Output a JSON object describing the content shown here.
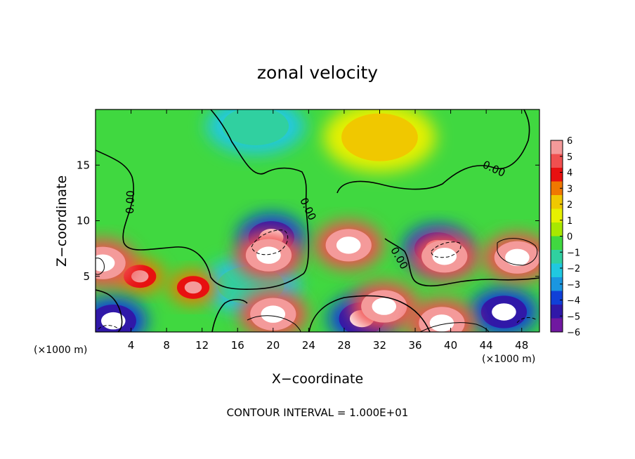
{
  "chart_data": {
    "type": "heatmap",
    "title": "zonal velocity",
    "xlabel": "X−coordinate",
    "ylabel": "Z−coordinate",
    "x_multiplier": "(×1000 m)",
    "z_multiplier": "(×1000 m)",
    "xlim": [
      0,
      50
    ],
    "ylim": [
      0,
      20
    ],
    "x_ticks": [
      4,
      8,
      12,
      16,
      20,
      24,
      28,
      32,
      36,
      40,
      44,
      48
    ],
    "y_ticks": [
      5,
      10,
      15
    ],
    "colorbar": {
      "levels": [
        6,
        5,
        4,
        3,
        2,
        1,
        0,
        -1,
        -2,
        -3,
        -4,
        -5,
        -6
      ],
      "labels": [
        "6",
        "5",
        "4",
        "3",
        "2",
        "1",
        "0",
        "−1",
        "−2",
        "−3",
        "−4",
        "−5",
        "−6"
      ],
      "colors": [
        "#f49a9a",
        "#f05050",
        "#e81010",
        "#f07800",
        "#f0c800",
        "#e6f000",
        "#a8e800",
        "#40d840",
        "#30d0a0",
        "#20c8e0",
        "#1a96e0",
        "#1040d8",
        "#3018a8",
        "#7018a0"
      ],
      "out_of_range": "#ffffff"
    },
    "contour_labels": [
      "0.00",
      "0.00",
      "0.00",
      "0.00",
      "0.00"
    ],
    "contour_interval_text": "CONTOUR INTERVAL = 1.000E+01",
    "features": [
      {
        "kind": "positive_max",
        "x": 19.5,
        "z": 6.9
      },
      {
        "kind": "positive_max",
        "x": 28.5,
        "z": 7.8
      },
      {
        "kind": "positive_max",
        "x": 39.3,
        "z": 6.8
      },
      {
        "kind": "positive_max",
        "x": 47.5,
        "z": 6.7
      },
      {
        "kind": "positive_max",
        "x": 0.8,
        "z": 6.2
      },
      {
        "kind": "positive_max",
        "x": 20.0,
        "z": 1.6
      },
      {
        "kind": "positive_max",
        "x": 32.5,
        "z": 2.3
      },
      {
        "kind": "positive_max",
        "x": 39.0,
        "z": 0.8
      },
      {
        "kind": "negative_max",
        "x": 19.8,
        "z": 8.5
      },
      {
        "kind": "negative_max",
        "x": 38.5,
        "z": 7.5
      },
      {
        "kind": "negative_max",
        "x": 2.0,
        "z": 1.0
      },
      {
        "kind": "negative_max",
        "x": 46.0,
        "z": 1.8
      },
      {
        "kind": "negative_max",
        "x": 30.0,
        "z": 1.2
      },
      {
        "kind": "warm_area",
        "x": 11.0,
        "z": 4.0
      },
      {
        "kind": "warm_area",
        "x": 5.0,
        "z": 5.0
      },
      {
        "kind": "cool_area",
        "x": 18.0,
        "z": 18.5
      },
      {
        "kind": "cool_area",
        "x": 17.5,
        "z": 4.2
      },
      {
        "kind": "yellow_area",
        "x": 32.0,
        "z": 17.5
      }
    ]
  }
}
